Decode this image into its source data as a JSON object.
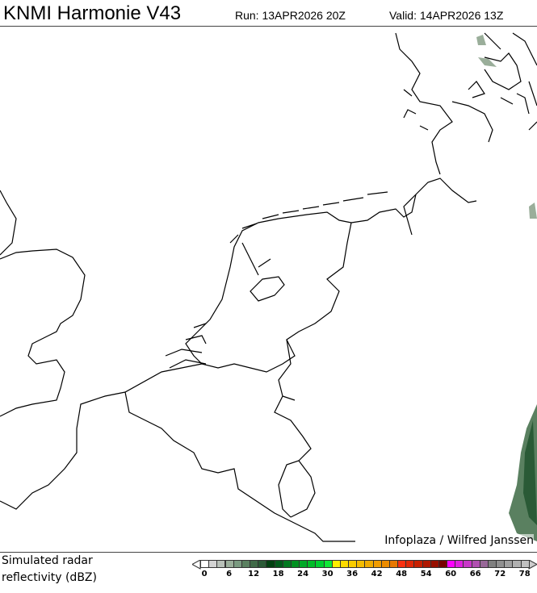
{
  "header": {
    "title": "KNMI Harmonie V43",
    "run": "Run: 13APR2026 20Z",
    "valid": "Valid: 14APR2026 13Z"
  },
  "map": {
    "credit": "Infoplaza / Wilfred Janssen",
    "region": "Netherlands, Belgium, SE England, NW Germany, Denmark"
  },
  "legend": {
    "label_line1": "Simulated radar",
    "label_line2": "reflectivity (dBZ)",
    "ticks": [
      "0",
      "6",
      "12",
      "18",
      "24",
      "30",
      "36",
      "42",
      "48",
      "54",
      "60",
      "66",
      "72",
      "78"
    ],
    "colors": [
      "#ffffff",
      "#d3d3d3",
      "#b8c0b8",
      "#9aae9a",
      "#7a9a80",
      "#5a8060",
      "#406a48",
      "#2a5a36",
      "#004010",
      "#005a1a",
      "#007a20",
      "#009020",
      "#00a828",
      "#00bc28",
      "#00d030",
      "#10e838",
      "#ffee00",
      "#ffdc00",
      "#f8cc00",
      "#f4bc00",
      "#f0ac00",
      "#f09c00",
      "#ec8c00",
      "#e87800",
      "#f83010",
      "#e02808",
      "#c82000",
      "#b01800",
      "#981000",
      "#780000",
      "#ff00ff",
      "#e020e0",
      "#c838c8",
      "#b050b0",
      "#986898",
      "#808080",
      "#909090",
      "#a0a0a0",
      "#b0b0b0",
      "#c0c0c0"
    ]
  }
}
